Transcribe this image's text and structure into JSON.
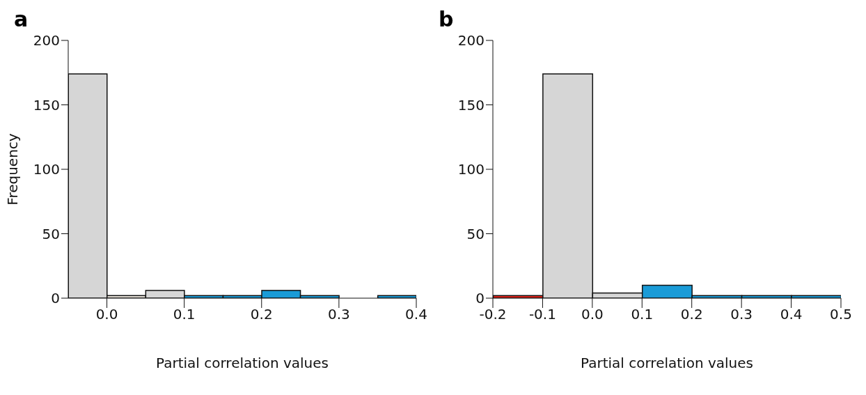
{
  "chart_data": [
    {
      "type": "histogram",
      "title": "a",
      "xlabel": "Partial correlation values",
      "ylabel": "Frequency",
      "bins": [
        -0.05,
        0,
        0.05,
        0.1,
        0.15,
        0.2,
        0.25,
        0.3,
        0.35,
        0.4
      ],
      "values": [
        174,
        2,
        6,
        2,
        2,
        6,
        2,
        0,
        2
      ],
      "colors": [
        "#d6d6d6",
        "#e6e0d8",
        "#d6d6d6",
        "#1a9bd7",
        "#1a9bd7",
        "#1a9bd7",
        "#1a9bd7",
        "#1a9bd7",
        "#1a9bd7"
      ],
      "xlim": [
        -0.05,
        0.4
      ],
      "xticks": [
        {
          "value": 0,
          "label": "0.0"
        },
        0.1,
        0.2,
        0.3,
        0.4
      ],
      "ylim": [
        0,
        200
      ],
      "yticks": [
        0,
        50,
        100,
        150,
        200
      ],
      "grid": false
    },
    {
      "type": "histogram",
      "title": "b",
      "xlabel": "Partial correlation values",
      "bins": [
        -0.2,
        -0.1,
        0,
        0.1,
        0.2,
        0.3,
        0.4,
        0.5
      ],
      "values": [
        2,
        174,
        4,
        10,
        2,
        2,
        2
      ],
      "colors": [
        "#e0241b",
        "#d6d6d6",
        "#d6d6d6",
        "#1a9bd7",
        "#1a9bd7",
        "#1a9bd7",
        "#1a9bd7"
      ],
      "xlim": [
        -0.2,
        0.5
      ],
      "xticks": [
        -0.2,
        -0.1,
        {
          "value": 0,
          "label": "0.0"
        },
        0.1,
        0.2,
        0.3,
        0.4,
        0.5
      ],
      "ylim": [
        0,
        200
      ],
      "yticks": [
        0,
        50,
        100,
        150,
        200
      ],
      "grid": false
    }
  ]
}
